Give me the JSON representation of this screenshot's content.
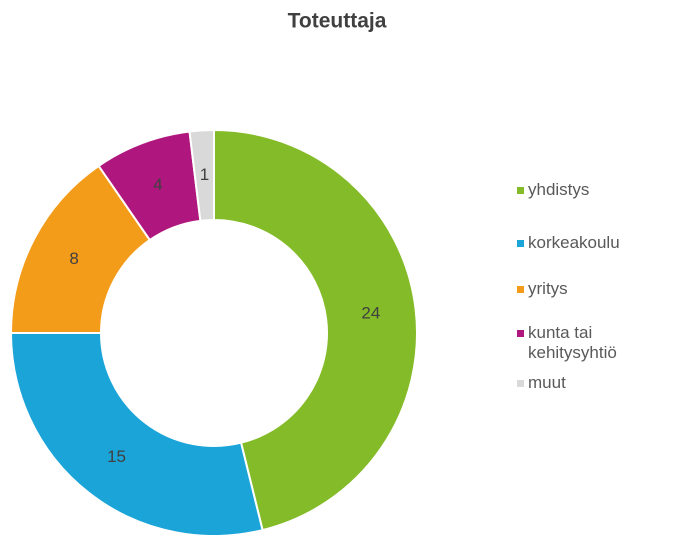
{
  "chart_data": {
    "type": "donut",
    "title": "Toteuttaja",
    "categories": [
      "yhdistys",
      "korkeakoulu",
      "yritys",
      "kunta tai kehitysyhtiö",
      "muut"
    ],
    "values": [
      24,
      15,
      8,
      4,
      1
    ],
    "colors": [
      "#84bb28",
      "#1aa4d8",
      "#f39c1a",
      "#b0177e",
      "#d9d9d9"
    ],
    "legend": "right"
  }
}
